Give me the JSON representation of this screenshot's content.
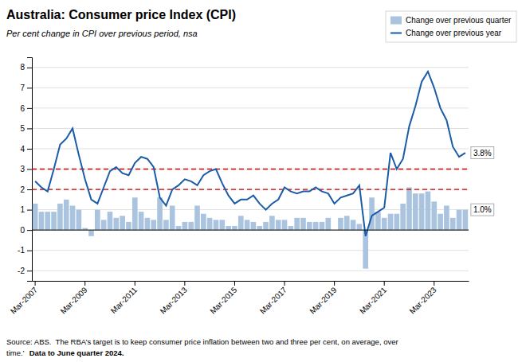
{
  "chart_data": {
    "type": "bar",
    "title": "Australia: Consumer price Index (CPI)",
    "subtitle": "Per cent change in CPI over previous period, nsa",
    "footnote": [
      "Source: ABS.  The RBA’s target is to keep consumer price inflation between two and three per cent, on average, over",
      "time.’"
    ],
    "footnote_bold": "Data to June quarter 2024.",
    "categories": [
      "Mar-2007",
      null,
      null,
      null,
      null,
      null,
      null,
      null,
      "Mar-2009",
      null,
      null,
      null,
      null,
      null,
      null,
      null,
      "Mar-2011",
      null,
      null,
      null,
      null,
      null,
      null,
      null,
      "Mar-2013",
      null,
      null,
      null,
      null,
      null,
      null,
      null,
      "Mar-2015",
      null,
      null,
      null,
      null,
      null,
      null,
      null,
      "Mar-2017",
      null,
      null,
      null,
      null,
      null,
      null,
      null,
      "Mar-2019",
      null,
      null,
      null,
      null,
      null,
      null,
      null,
      "Mar-2021",
      null,
      null,
      null,
      null,
      null,
      null,
      null,
      "Mar-2023",
      null,
      null,
      null,
      null,
      null
    ],
    "series": [
      {
        "name": "Change over previous quarter",
        "type": "bar",
        "color": "#aac4e0",
        "values": [
          1.3,
          0.9,
          0.9,
          0.9,
          1.3,
          1.5,
          1.2,
          1.0,
          0.1,
          -0.3,
          1.0,
          0.5,
          0.9,
          0.6,
          0.7,
          0.4,
          1.6,
          0.9,
          0.6,
          0.5,
          1.6,
          0.5,
          1.2,
          0.2,
          0.4,
          0.4,
          1.2,
          0.8,
          0.6,
          0.5,
          0.5,
          0.2,
          0.2,
          0.7,
          0.5,
          0.4,
          0.2,
          0.4,
          0.7,
          0.5,
          0.5,
          0.2,
          0.6,
          0.6,
          0.4,
          0.4,
          0.4,
          0.6,
          0.0,
          0.6,
          0.7,
          0.5,
          0.3,
          -1.9,
          1.6,
          0.9,
          0.6,
          0.8,
          0.8,
          1.3,
          2.1,
          1.8,
          1.8,
          1.9,
          1.4,
          0.8,
          1.2,
          0.6,
          1.0,
          1.0
        ]
      },
      {
        "name": "Change over previous year",
        "type": "line",
        "color": "#1a5ca8",
        "values": [
          2.4,
          2.1,
          1.9,
          3.0,
          4.2,
          4.5,
          5.0,
          3.7,
          2.5,
          1.5,
          1.3,
          2.1,
          2.9,
          3.1,
          2.8,
          2.7,
          3.3,
          3.6,
          3.5,
          3.1,
          1.6,
          1.2,
          2.0,
          2.2,
          2.5,
          2.4,
          2.2,
          2.7,
          2.9,
          3.0,
          2.3,
          1.7,
          1.3,
          1.5,
          1.5,
          1.7,
          1.3,
          1.0,
          1.3,
          1.5,
          2.1,
          1.9,
          1.8,
          1.9,
          1.9,
          2.1,
          1.9,
          1.8,
          1.3,
          1.6,
          1.7,
          1.8,
          2.2,
          -0.3,
          0.7,
          0.9,
          1.1,
          3.8,
          3.0,
          3.5,
          5.1,
          6.1,
          7.3,
          7.8,
          7.0,
          6.0,
          5.4,
          4.1,
          3.6,
          3.8
        ]
      }
    ],
    "target_band": {
      "values": [
        2.0,
        3.0
      ],
      "color": "#cc0000",
      "line_style": "dashed"
    },
    "annotations": [
      {
        "text": "3.8%",
        "value": 3.8
      },
      {
        "text": "1.0%",
        "value": 1.0
      }
    ],
    "ylim": [
      -2.5,
      8.5
    ],
    "yticks": [
      -2,
      -1,
      0,
      1,
      2,
      3,
      4,
      5,
      6,
      7,
      8
    ],
    "grid": true,
    "legend": "upper right"
  }
}
